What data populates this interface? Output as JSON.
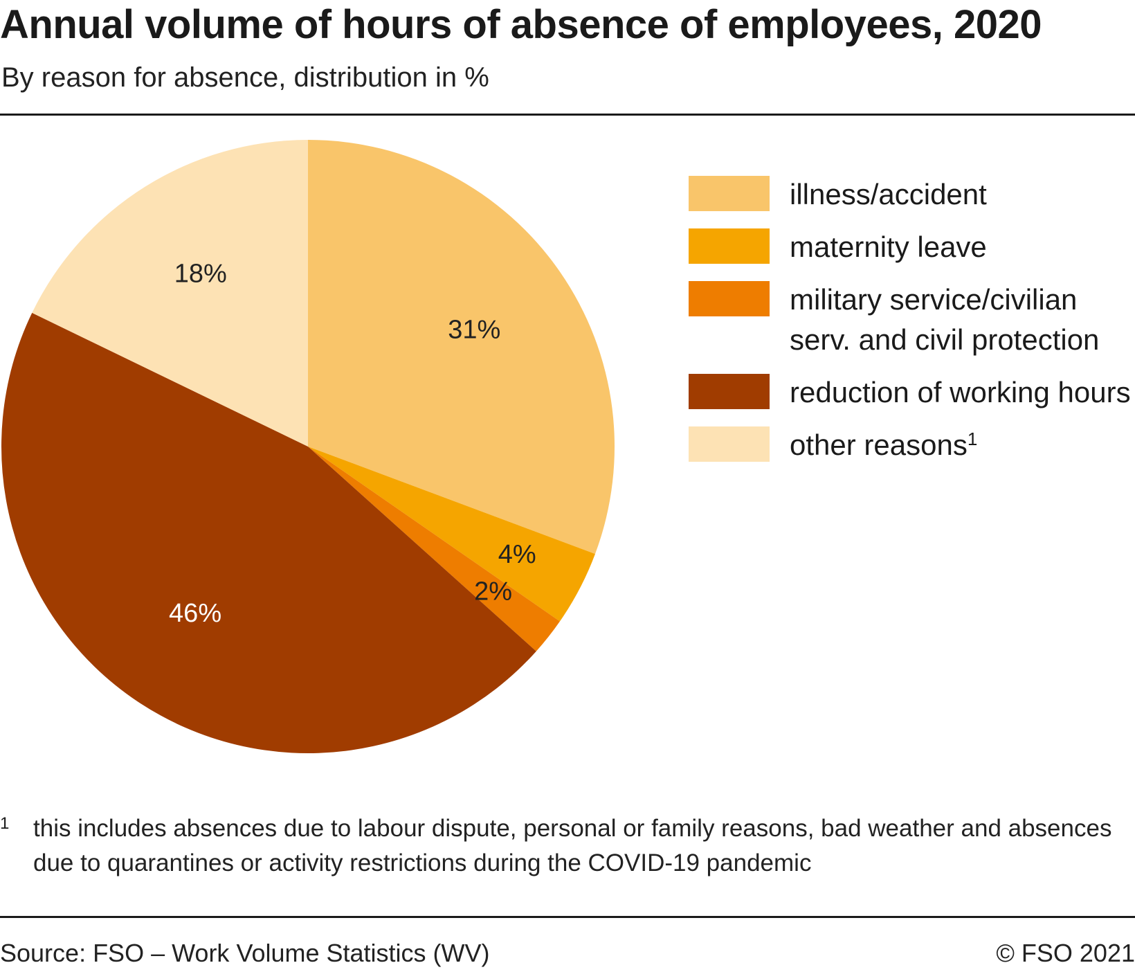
{
  "header": {
    "title": "Annual volume of hours of absence of employees, 2020",
    "subtitle": "By reason for absence, distribution in %"
  },
  "chart_data": {
    "type": "pie",
    "title": "Annual volume of hours of absence of employees, 2020",
    "subtitle": "By reason for absence, distribution in %",
    "legend_position": "right",
    "slices": [
      {
        "label": "illness/accident",
        "value": 31,
        "data_label": "31%",
        "color": "#F9C56A",
        "label_color": "#222222"
      },
      {
        "label": "maternity leave",
        "value": 4,
        "data_label": "4%",
        "color": "#F5A500",
        "label_color": "#222222"
      },
      {
        "label": "military service/civilian serv. and civil protection",
        "value": 2,
        "data_label": "2%",
        "color": "#EE7D00",
        "label_color": "#222222"
      },
      {
        "label": "reduction of working hours",
        "value": 46,
        "data_label": "46%",
        "color": "#A03C00",
        "label_color": "#FFFFFF"
      },
      {
        "label": "other reasons",
        "value": 18,
        "data_label": "18%",
        "color": "#FDE2B4",
        "label_color": "#222222"
      }
    ]
  },
  "legend": {
    "items": [
      {
        "label": "illness/accident",
        "sup": "",
        "color": "#F9C56A"
      },
      {
        "label": "maternity leave",
        "sup": "",
        "color": "#F5A500"
      },
      {
        "label": "military service/civilian serv. and civil protection",
        "sup": "",
        "color": "#EE7D00"
      },
      {
        "label": "reduction of working hours",
        "sup": "",
        "color": "#A03C00"
      },
      {
        "label": "other reasons",
        "sup": "1",
        "color": "#FDE2B4"
      }
    ]
  },
  "footnote": {
    "marker": "1",
    "text": "this includes absences due to labour dispute, personal or family reasons, bad weather and absences due to quarantines or activity restrictions during the COVID-19 pandemic"
  },
  "footer": {
    "source": "Source: FSO – Work Volume Statistics (WV)",
    "copyright": "© FSO 2021"
  }
}
